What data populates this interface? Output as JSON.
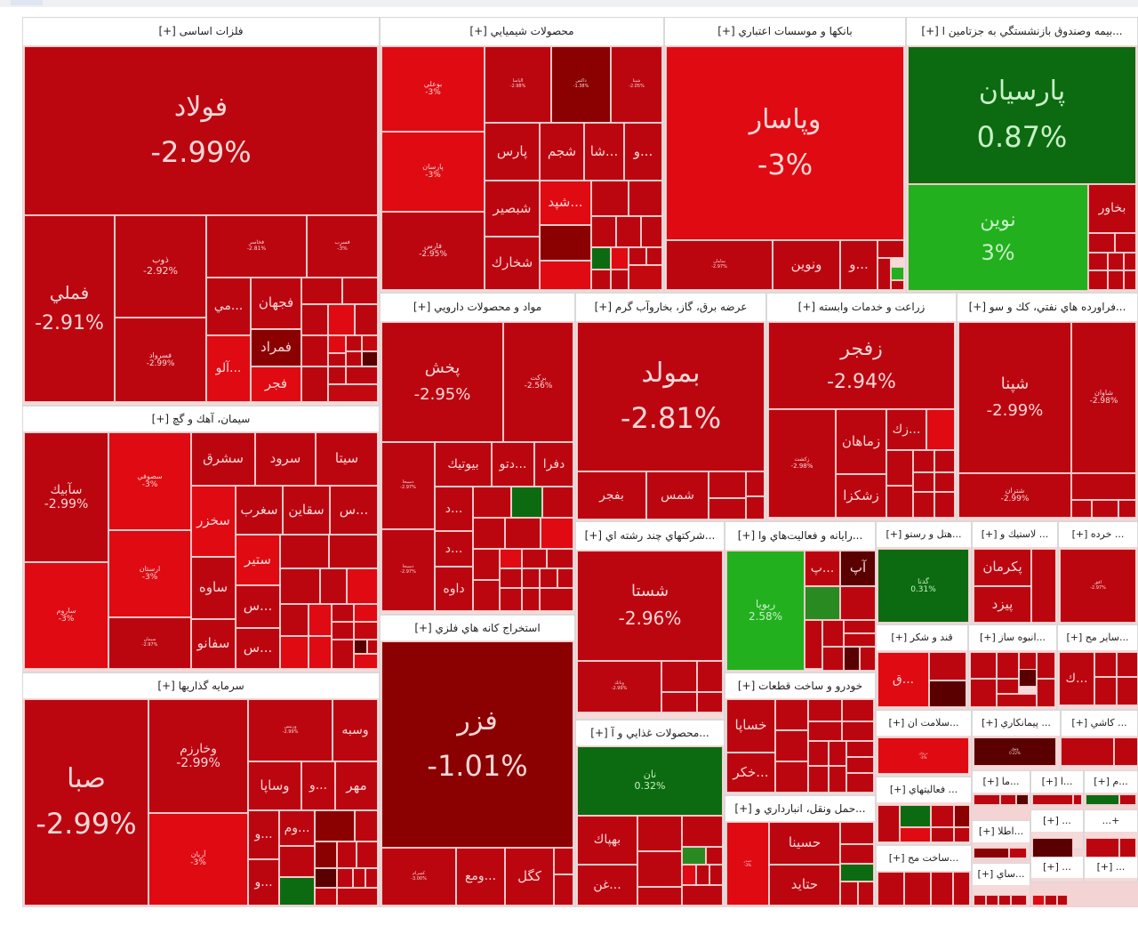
{
  "chart_data": {
    "type": "treemap",
    "title": "",
    "sectors": [
      {
        "name": "فلزات اساسی [+]",
        "stocks": [
          {
            "symbol": "فولاد",
            "change": "-2.99%"
          },
          {
            "symbol": "فملي",
            "change": "-2.91%"
          },
          {
            "symbol": "ذوب",
            "change": "-2.92%"
          },
          {
            "symbol": "فسرواد",
            "change": "-2.99%"
          },
          {
            "symbol": "فخاسر",
            "change": "-2.81%"
          },
          {
            "symbol": "فسرب",
            "change": "-3%"
          },
          {
            "symbol": "فجهان"
          },
          {
            "symbol": "فمراد"
          },
          {
            "symbol": "فجر"
          },
          {
            "symbol": "...مي"
          },
          {
            "symbol": "...آلو"
          }
        ]
      },
      {
        "name": "محصولات شيميايي [+]",
        "stocks": [
          {
            "symbol": "بوعلي",
            "change": "-3%"
          },
          {
            "symbol": "پارسان",
            "change": "-3%"
          },
          {
            "symbol": "فارس",
            "change": "-2.95%"
          },
          {
            "symbol": "الپاسا",
            "change": "-2.98%"
          },
          {
            "symbol": "ذاکس",
            "change": "-1.38%"
          },
          {
            "symbol": "شپنا",
            "change": "-2.05%"
          },
          {
            "symbol": "پارس"
          },
          {
            "symbol": "شجم"
          },
          {
            "symbol": "...شا"
          },
          {
            "symbol": "...و"
          },
          {
            "symbol": "شبصير"
          },
          {
            "symbol": "...شپد"
          },
          {
            "symbol": "شخارك"
          }
        ]
      },
      {
        "name": "بانكها و موسسات اعتباري [+]",
        "stocks": [
          {
            "symbol": "وپاسار",
            "change": "-3%"
          },
          {
            "symbol": "سامان",
            "change": "-2.97%"
          },
          {
            "symbol": "ونوين"
          },
          {
            "symbol": "...و"
          }
        ]
      },
      {
        "name": "...بيمه وصندوق بازنشستگي به جزتامين ا [+]",
        "stocks": [
          {
            "symbol": "پارسيان",
            "change": "0.87%"
          },
          {
            "symbol": "نوين",
            "change": "3%"
          },
          {
            "symbol": "بخاور"
          }
        ]
      },
      {
        "name": "سيمان، آهك و گچ [+]",
        "stocks": [
          {
            "symbol": "سآبيك",
            "change": "-2.99%"
          },
          {
            "symbol": "سصوفي",
            "change": "-3%"
          },
          {
            "symbol": "ارستان",
            "change": "-3%"
          },
          {
            "symbol": "ساروم",
            "change": "-3%"
          },
          {
            "symbol": "سيمان",
            "change": "-2.97%"
          },
          {
            "symbol": "سشرق"
          },
          {
            "symbol": "سرود"
          },
          {
            "symbol": "سيتا"
          },
          {
            "symbol": "سخزر"
          },
          {
            "symbol": "سغرب"
          },
          {
            "symbol": "سقاين"
          },
          {
            "symbol": "...س"
          },
          {
            "symbol": "ستير"
          },
          {
            "symbol": "ساوه"
          },
          {
            "symbol": "سفانو"
          }
        ]
      },
      {
        "name": "مواد و محصولات دارويي [+]",
        "stocks": [
          {
            "symbol": "پخش",
            "change": "-2.95%"
          },
          {
            "symbol": "بركت",
            "change": "-2.56%"
          },
          {
            "symbol": "بيوتيك"
          },
          {
            "symbol": "...دتو"
          },
          {
            "symbol": "دفرا"
          },
          {
            "symbol": "...د"
          },
          {
            "symbol": "داوه"
          }
        ]
      },
      {
        "name": "عرضه برق، گاز، بخاروآب گرم [+]",
        "stocks": [
          {
            "symbol": "بمولد",
            "change": "-2.81%"
          },
          {
            "symbol": "بفجر"
          },
          {
            "symbol": "شمس"
          }
        ]
      },
      {
        "name": "زراعت و خدمات وابسته [+]",
        "stocks": [
          {
            "symbol": "زفجر",
            "change": "-2.94%"
          },
          {
            "symbol": "زكشت",
            "change": "-2.98%"
          },
          {
            "symbol": "زماهان"
          },
          {
            "symbol": "...زك"
          },
          {
            "symbol": "زشكزا"
          }
        ]
      },
      {
        "name": "...فراورده هاي نفتي، كك و سو [+]",
        "stocks": [
          {
            "symbol": "شپنا",
            "change": "-2.99%"
          },
          {
            "symbol": "شاوان",
            "change": "-2.98%"
          },
          {
            "symbol": "شتران",
            "change": "-2.99%"
          }
        ]
      },
      {
        "name": "استخراج كانه هاي فلزي [+]",
        "stocks": [
          {
            "symbol": "فزر",
            "change": "-1.01%"
          },
          {
            "symbol": "كسرام",
            "change": "-3.00%"
          },
          {
            "symbol": "...ومع"
          },
          {
            "symbol": "كگل"
          }
        ]
      },
      {
        "name": "...شركتهاي چند رشته اي [+]",
        "stocks": [
          {
            "symbol": "شستا",
            "change": "-2.96%"
          },
          {
            "symbol": "وبانك",
            "change": "-2.99%"
          }
        ]
      },
      {
        "name": "...رايانه و فعاليت‌هاي وا [+]",
        "stocks": [
          {
            "symbol": "ربويا",
            "change": "2.58%"
          },
          {
            "symbol": "...پ"
          },
          {
            "symbol": "آپ"
          }
        ]
      },
      {
        "name": "...هتل و رستو [+]",
        "stocks": [
          {
            "symbol": "گدنا",
            "change": "0.31%"
          }
        ]
      },
      {
        "name": "... لاستيك و [+]",
        "stocks": [
          {
            "symbol": "پكرمان"
          },
          {
            "symbol": "پيزد"
          }
        ]
      },
      {
        "name": "... خرده [+]",
        "stocks": [
          {
            "symbol": "افق",
            "change": "-2.97%"
          }
        ]
      },
      {
        "name": "قند و شكر [+]",
        "stocks": [
          {
            "symbol": "...ق"
          }
        ]
      },
      {
        "name": "...انبوه ساز [+]",
        "stocks": []
      },
      {
        "name": "...ساير مح [+]",
        "stocks": [
          {
            "symbol": "...ك"
          }
        ]
      },
      {
        "name": "سرمايه گذاريها [+]",
        "stocks": [
          {
            "symbol": "صبا",
            "change": "-2.99%"
          },
          {
            "symbol": "وخارزم",
            "change": "-2.99%"
          },
          {
            "symbol": "آريان",
            "change": "-3%"
          },
          {
            "symbol": "ورنيس",
            "change": "-2.99%"
          },
          {
            "symbol": "وسبه"
          },
          {
            "symbol": "وساپا"
          },
          {
            "symbol": "...و"
          },
          {
            "symbol": "مهر"
          },
          {
            "symbol": "...وم"
          }
        ]
      },
      {
        "name": "...محصولات غذايي و آ [+]",
        "stocks": [
          {
            "symbol": "نان",
            "change": "0.32%"
          },
          {
            "symbol": "بهپاك"
          },
          {
            "symbol": "...غن"
          }
        ]
      },
      {
        "name": "خودرو و ساخت قطعات [+]",
        "stocks": [
          {
            "symbol": "خساپا"
          },
          {
            "symbol": "...خكر"
          }
        ]
      },
      {
        "name": "...حمل ونقل، انبارداري و [+]",
        "stocks": [
          {
            "symbol": "حبندر",
            "change": "-3%"
          },
          {
            "symbol": "حسينا"
          },
          {
            "symbol": "حتايد"
          }
        ]
      },
      {
        "name": "...سلامت ان [+]",
        "stocks": [
          {
            "symbol": "درمان",
            "change": "-3%"
          }
        ]
      },
      {
        "name": "... پيمانكاري [+]",
        "stocks": [
          {
            "symbol": "وثوق",
            "change": "0.22%"
          }
        ]
      },
      {
        "name": "... كاشي [+]",
        "stocks": []
      },
      {
        "name": "... فعاليتهاي [+]",
        "stocks": []
      },
      {
        "name": "...ساخت مح [+]",
        "stocks": []
      },
      {
        "name": "...ما [+]",
        "stocks": []
      },
      {
        "name": "...ا [+]",
        "stocks": []
      },
      {
        "name": "...م [+]",
        "stocks": []
      },
      {
        "name": "...اطلا [+]",
        "stocks": []
      },
      {
        "name": "...ساي [+]",
        "stocks": []
      }
    ],
    "color_scale": {
      "strong_negative": "#8b0000",
      "negative": "#bb0610",
      "mild_negative": "#e00a12",
      "positive": "#0c6b10",
      "strong_positive": "#22b01e"
    }
  },
  "ui": {
    "sec": {
      "s1": "فلزات اساسی [+]",
      "s2": "محصولات شيميايي [+]",
      "s3": "بانكها و موسسات اعتباري [+]",
      "s4": "...بيمه وصندوق بازنشستگي به جزتامين ا [+]",
      "s5": "سيمان، آهك و گچ [+]",
      "s6": "مواد و محصولات دارويي [+]",
      "s7": "عرضه برق، گاز، بخاروآب گرم [+]",
      "s8": "زراعت و خدمات وابسته [+]",
      "s9": "...فراورده هاي نفتي، كك و سو [+]",
      "s10": "استخراج كانه هاي فلزي [+]",
      "s11": "...شركتهاي چند رشته اي [+]",
      "s12": "...رايانه و فعاليت‌هاي وا [+]",
      "s13": "...هتل و رستو [+]",
      "s14": "... لاستيك و [+]",
      "s15": "... خرده [+]",
      "s16": "قند و شكر [+]",
      "s17": "...انبوه ساز [+]",
      "s18": "...ساير مح [+]",
      "s19": "سرمايه گذاريها [+]",
      "s20": "...محصولات غذايي و آ [+]",
      "s21": "خودرو و ساخت قطعات [+]",
      "s22": "...حمل ونقل، انبارداري و [+]",
      "s23": "...سلامت ان [+]",
      "s24": "... پيمانكاري [+]",
      "s25": "... كاشي [+]",
      "s26": "... فعاليتهاي [+]",
      "s27": "...ساخت مح [+]",
      "s28": "...ما [+]",
      "s29": "...ا [+]",
      "s30": "...م [+]",
      "s31": "...اطلا [+]",
      "s32": "...ساي [+]",
      "s33": "... [+]",
      "s34": "+..."
    },
    "t": {
      "foolad": [
        "فولاد",
        "-2.99%"
      ],
      "fameli": [
        "فملي",
        "-2.91%"
      ],
      "zob": [
        "ذوب",
        "-2.92%"
      ],
      "fasorvad": [
        "فسرواد",
        "-2.99%"
      ],
      "fkhaser": [
        "فخاسر",
        "-2.81%"
      ],
      "fsorb": [
        "فسرب",
        "-3%"
      ],
      "fjahan": [
        "فجهان"
      ],
      "fmorad": [
        "فمراد"
      ],
      "fajr": [
        "فجر"
      ],
      "mi": [
        "...مي"
      ],
      "alu": [
        "...آلو"
      ],
      "buali": [
        "بوعلي",
        "-3%"
      ],
      "parsan": [
        "پارسان",
        "-3%"
      ],
      "fars": [
        "فارس",
        "-2.95%"
      ],
      "alpasa": [
        "الپاسا",
        "-2.98%"
      ],
      "zaks": [
        "ذاكس",
        "-1.38%"
      ],
      "shpna2": [
        "شپنا",
        "-2.05%"
      ],
      "pars": [
        "پارس"
      ],
      "shajam": [
        "شجم"
      ],
      "sha": [
        "...شا"
      ],
      "vo": [
        "...و"
      ],
      "shbasir": [
        "شبصير"
      ],
      "shpd": [
        "...شپد"
      ],
      "shkhark": [
        "شخارك"
      ],
      "vpasar": [
        "وپاسار",
        "-3%"
      ],
      "saman": [
        "سامان",
        "-2.97%"
      ],
      "vnovin": [
        "ونوين"
      ],
      "parsian": [
        "پارسيان",
        "0.87%"
      ],
      "novin": [
        "نوين",
        "3%"
      ],
      "bkhavar": [
        "بخاور"
      ],
      "sabik": [
        "سآبيك",
        "-2.99%"
      ],
      "ssoufi": [
        "سصوفي",
        "-3%"
      ],
      "arestan": [
        "ارستان",
        "-3%"
      ],
      "sarom": [
        "ساروم",
        "-3%"
      ],
      "siman": [
        "سيمان",
        "-2.97%"
      ],
      "ssharq": [
        "سشرق"
      ],
      "srood": [
        "سرود"
      ],
      "sita": [
        "سيتا"
      ],
      "skhazar": [
        "سخزر"
      ],
      "sgharb": [
        "سغرب"
      ],
      "sqayen": [
        "سقاين"
      ],
      "sx": [
        "...س"
      ],
      "stir": [
        "ستير"
      ],
      "saveh": [
        "ساوه"
      ],
      "sfano": [
        "سفانو"
      ],
      "pakhsh": [
        "پخش",
        "-2.95%"
      ],
      "barkat": [
        "بركت",
        "-2.56%"
      ],
      "biotik": [
        "بيوتيك"
      ],
      "dto": [
        "...دتو"
      ],
      "dfra": [
        "دفرا"
      ],
      "dx": [
        "...د"
      ],
      "davah": [
        "داوه"
      ],
      "dsm": [
        "دسبحا",
        "-2.97%"
      ],
      "bmold": [
        "بمولد",
        "-2.81%"
      ],
      "bfajr": [
        "بفجر"
      ],
      "shams": [
        "شمس"
      ],
      "zfajr": [
        "زفجر",
        "-2.94%"
      ],
      "zkesht": [
        "زكشت",
        "-2.98%"
      ],
      "zmahan": [
        "زماهان"
      ],
      "zk": [
        "...زك"
      ],
      "zshkza": [
        "زشكزا"
      ],
      "shpna": [
        "شپنا",
        "-2.99%"
      ],
      "shavan": [
        "شاوان",
        "-2.98%"
      ],
      "shtran": [
        "شتران",
        "-2.99%"
      ],
      "fzar": [
        "فزر",
        "-1.01%"
      ],
      "kseram": [
        "كسرام",
        "-3.00%"
      ],
      "vomae": [
        "...ومع"
      ],
      "kgol": [
        "كگل"
      ],
      "shasta": [
        "شستا",
        "-2.96%"
      ],
      "vbank": [
        "وبانك",
        "-2.99%"
      ],
      "rboya": [
        "ربويا",
        "2.58%"
      ],
      "p": [
        "...پ"
      ],
      "ap": [
        "آپ"
      ],
      "gdna": [
        "گدنا",
        "0.31%"
      ],
      "pkerman": [
        "پكرمان"
      ],
      "pyazd": [
        "پيزد"
      ],
      "ofogh": [
        "افق",
        "-2.97%"
      ],
      "q": [
        "...ق"
      ],
      "k": [
        "...ك"
      ],
      "saba": [
        "صبا",
        "-2.99%"
      ],
      "vkharazm": [
        "وخارزم",
        "-2.99%"
      ],
      "arian": [
        "آريان",
        "-3%"
      ],
      "vrnis": [
        "ورنيس",
        "-2.99%"
      ],
      "vsebe": [
        "وسبه"
      ],
      "vsapa": [
        "وساپا"
      ],
      "mehr": [
        "مهر"
      ],
      "vom": [
        "...وم"
      ],
      "nan": [
        "نان",
        "0.32%"
      ],
      "behpak": [
        "بهپاك"
      ],
      "ghan": [
        "...غن"
      ],
      "khsapa": [
        "خساپا"
      ],
      "khkar": [
        "...خكر"
      ],
      "hbandar": [
        "حبندر",
        "-3%"
      ],
      "hsina": [
        "حسينا"
      ],
      "htayd": [
        "حتايد"
      ],
      "darman": [
        "درمان",
        "-3%"
      ],
      "vsoq": [
        "وثوق",
        "0.22%"
      ]
    }
  }
}
